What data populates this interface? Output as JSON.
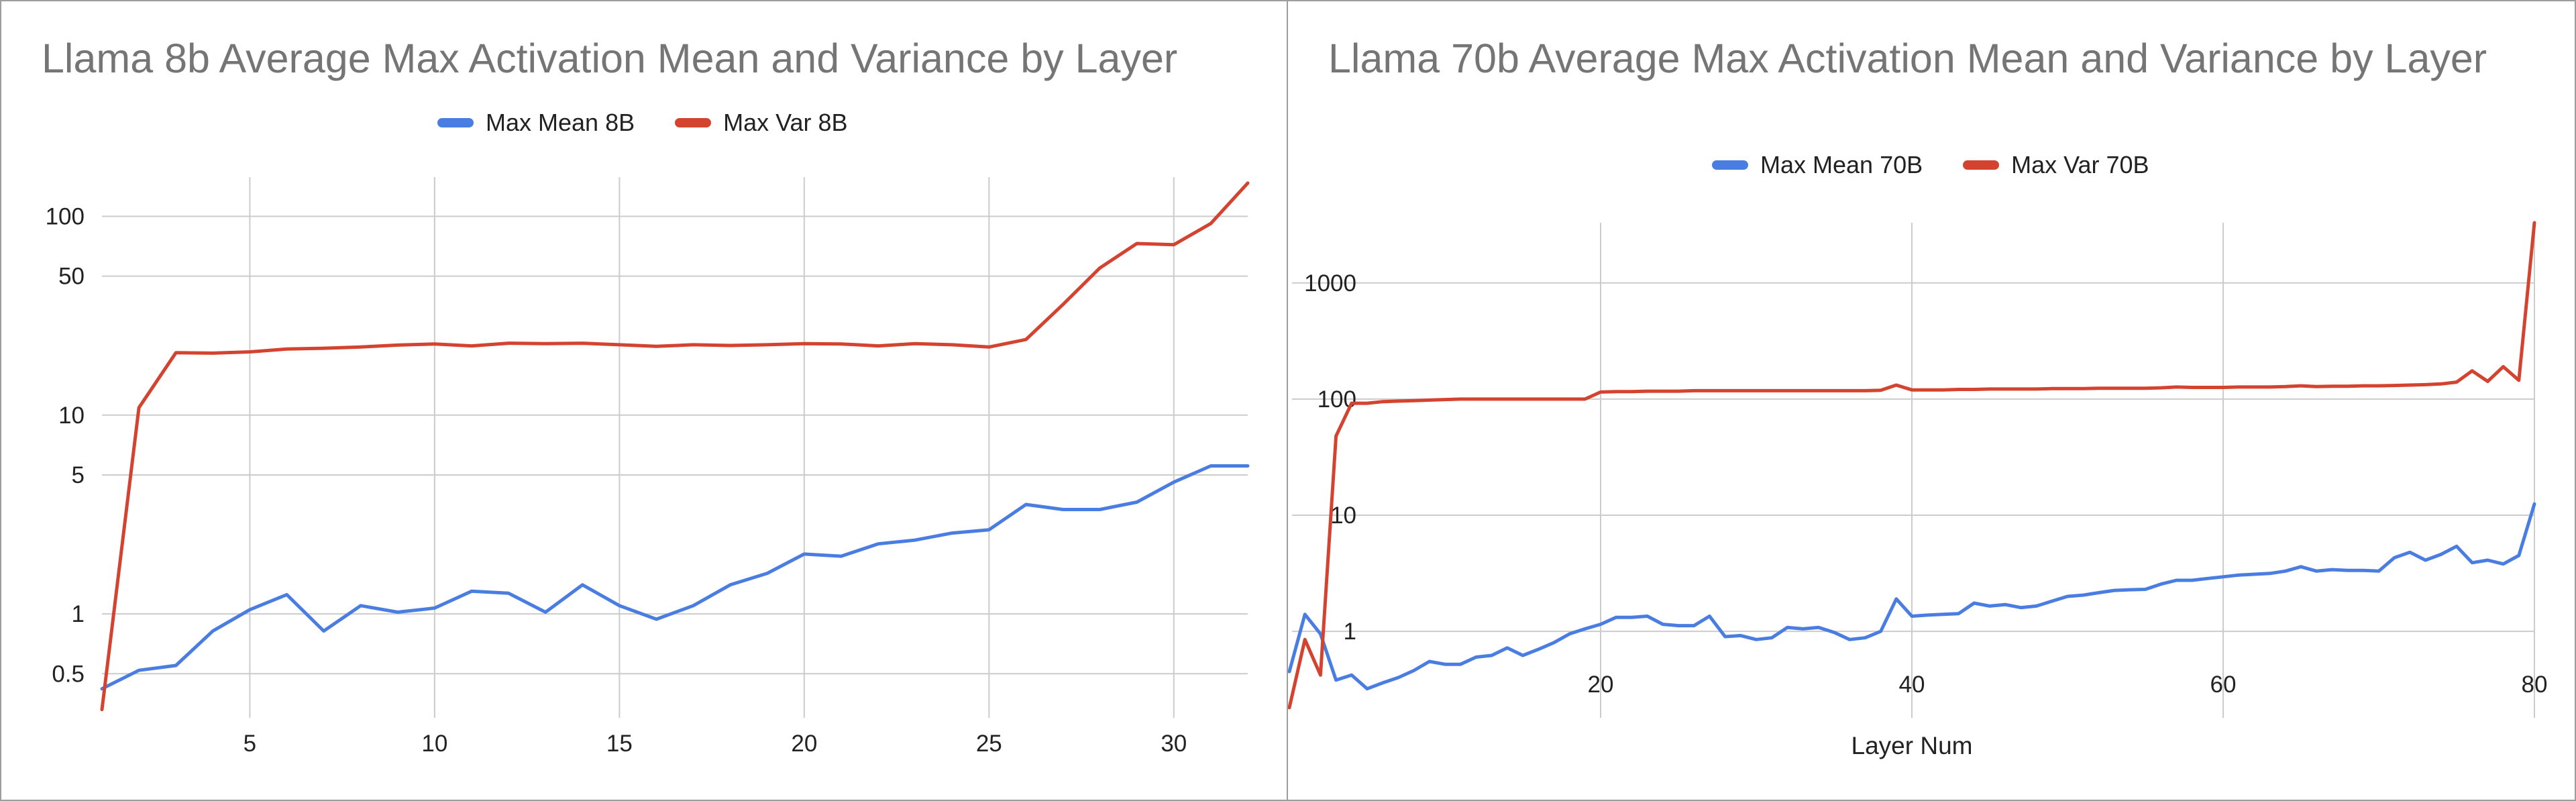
{
  "chart_data": [
    {
      "type": "line",
      "title": "Llama 8b Average Max Activation Mean and Variance by Layer",
      "xlabel": "",
      "ylabel": "",
      "yscale": "log",
      "xlim": [
        1,
        32
      ],
      "ylim": [
        0.3,
        160
      ],
      "xticks": [
        5,
        10,
        15,
        20,
        25,
        30
      ],
      "ytick_values": [
        0.5,
        1,
        5,
        10,
        50,
        100
      ],
      "ytick_labels": [
        "0.5",
        "1",
        "5",
        "10",
        "50",
        "100"
      ],
      "grid": true,
      "legend_position": "top",
      "x": [
        1,
        2,
        3,
        4,
        5,
        6,
        7,
        8,
        9,
        10,
        11,
        12,
        13,
        14,
        15,
        16,
        17,
        18,
        19,
        20,
        21,
        22,
        23,
        24,
        25,
        26,
        27,
        28,
        29,
        30,
        31,
        32
      ],
      "series": [
        {
          "name": "Max Mean 8B",
          "color": "#4a7de2",
          "values": [
            0.42,
            0.52,
            0.55,
            0.82,
            1.05,
            1.25,
            0.82,
            1.1,
            1.02,
            1.07,
            1.3,
            1.27,
            1.02,
            1.4,
            1.1,
            0.94,
            1.1,
            1.4,
            1.6,
            2.0,
            1.95,
            2.25,
            2.35,
            2.55,
            2.65,
            3.55,
            3.35,
            3.35,
            3.65,
            4.6,
            5.55,
            5.55
          ]
        },
        {
          "name": "Max Var 8B",
          "color": "#d4432f",
          "values": [
            0.33,
            10.9,
            20.6,
            20.5,
            20.8,
            21.5,
            21.7,
            22.0,
            22.5,
            22.8,
            22.3,
            23.0,
            22.9,
            23.0,
            22.6,
            22.2,
            22.6,
            22.4,
            22.6,
            22.9,
            22.8,
            22.3,
            22.9,
            22.6,
            22.0,
            24.0,
            36,
            55,
            73,
            72,
            92,
            147
          ]
        }
      ]
    },
    {
      "type": "line",
      "title": "Llama 70b Average Max Activation Mean and Variance by Layer",
      "xlabel": "Layer Num",
      "ylabel": "",
      "yscale": "log",
      "xlim": [
        0,
        80
      ],
      "ylim": [
        0.18,
        3300
      ],
      "xticks": [
        20,
        40,
        60,
        80
      ],
      "ytick_values": [
        1,
        10,
        100,
        1000
      ],
      "ytick_labels": [
        "1",
        "10",
        "100",
        "1000"
      ],
      "grid": true,
      "legend_position": "top",
      "x": [
        0,
        1,
        2,
        3,
        4,
        5,
        6,
        7,
        8,
        9,
        10,
        11,
        12,
        13,
        14,
        15,
        16,
        17,
        18,
        19,
        20,
        21,
        22,
        23,
        24,
        25,
        26,
        27,
        28,
        29,
        30,
        31,
        32,
        33,
        34,
        35,
        36,
        37,
        38,
        39,
        40,
        41,
        42,
        43,
        44,
        45,
        46,
        47,
        48,
        49,
        50,
        51,
        52,
        53,
        54,
        55,
        56,
        57,
        58,
        59,
        60,
        61,
        62,
        63,
        64,
        65,
        66,
        67,
        68,
        69,
        70,
        71,
        72,
        73,
        74,
        75,
        76,
        77,
        78,
        79,
        80
      ],
      "series": [
        {
          "name": "Max Mean 70B",
          "color": "#4a7de2",
          "values": [
            0.45,
            1.4,
            0.95,
            0.38,
            0.42,
            0.32,
            0.36,
            0.4,
            0.46,
            0.55,
            0.52,
            0.52,
            0.6,
            0.62,
            0.72,
            0.62,
            0.7,
            0.8,
            0.95,
            1.05,
            1.15,
            1.32,
            1.32,
            1.35,
            1.15,
            1.12,
            1.12,
            1.35,
            0.9,
            0.92,
            0.85,
            0.88,
            1.08,
            1.05,
            1.08,
            0.98,
            0.85,
            0.88,
            1.0,
            1.9,
            1.35,
            1.38,
            1.4,
            1.42,
            1.75,
            1.65,
            1.7,
            1.6,
            1.65,
            1.82,
            2.0,
            2.05,
            2.15,
            2.25,
            2.28,
            2.3,
            2.55,
            2.75,
            2.75,
            2.85,
            2.95,
            3.05,
            3.1,
            3.15,
            3.3,
            3.6,
            3.3,
            3.4,
            3.35,
            3.35,
            3.3,
            4.3,
            4.8,
            4.1,
            4.6,
            5.4,
            3.9,
            4.1,
            3.8,
            4.5,
            12.5
          ]
        },
        {
          "name": "Max Var 70B",
          "color": "#d4432f",
          "values": [
            0.22,
            0.85,
            0.42,
            48,
            92,
            92,
            95,
            96,
            97,
            98,
            99,
            100,
            100,
            100,
            100,
            100,
            100,
            100,
            100,
            100,
            115,
            116,
            116,
            117,
            117,
            117,
            118,
            118,
            118,
            118,
            118,
            118,
            118,
            118,
            118,
            118,
            118,
            118,
            119,
            132,
            120,
            120,
            120,
            121,
            121,
            122,
            122,
            122,
            122,
            123,
            123,
            123,
            124,
            124,
            124,
            124,
            125,
            127,
            126,
            126,
            126,
            127,
            127,
            127,
            128,
            130,
            128,
            129,
            129,
            130,
            130,
            131,
            132,
            133,
            135,
            140,
            175,
            142,
            190,
            145,
            3300
          ]
        }
      ]
    }
  ]
}
